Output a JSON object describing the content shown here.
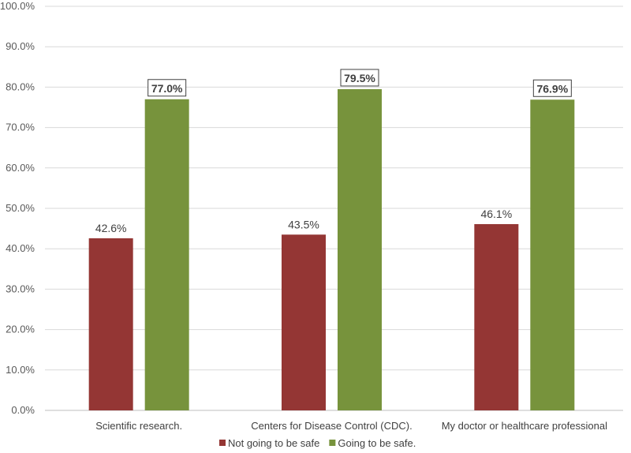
{
  "chart_data": {
    "type": "bar",
    "categories": [
      "Scientific research.",
      "Centers for Disease Control (CDC).",
      "My doctor or healthcare professional"
    ],
    "series": [
      {
        "name": "Not going to be safe",
        "values": [
          42.6,
          43.5,
          46.1
        ],
        "labels": [
          "42.6%",
          "43.5%",
          "46.1%"
        ],
        "color": "#943634",
        "label_boxed": false
      },
      {
        "name": "Going to be safe.",
        "values": [
          77.0,
          79.5,
          76.9
        ],
        "labels": [
          "77.0%",
          "79.5%",
          "76.9%"
        ],
        "color": "#77933C",
        "label_boxed": true
      }
    ],
    "y_ticks": [
      "0.0%",
      "10.0%",
      "20.0%",
      "30.0%",
      "40.0%",
      "50.0%",
      "60.0%",
      "70.0%",
      "80.0%",
      "90.0%",
      "100.0%"
    ],
    "ylim": [
      0,
      100
    ],
    "grid": true,
    "legend_position": "bottom",
    "title": "",
    "xlabel": "",
    "ylabel": ""
  }
}
